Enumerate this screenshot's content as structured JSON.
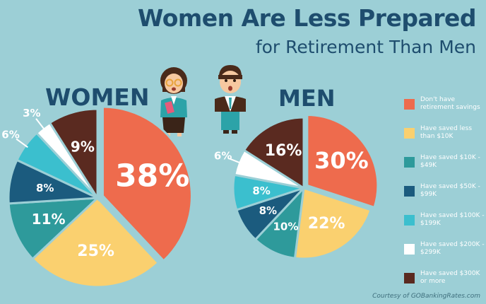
{
  "title": "Women Are Less Prepared",
  "subtitle": "for Retirement Than Men",
  "credit": "Courtesy of GOBankingRates.com",
  "legend": [
    {
      "label": "Don't have retirement savings",
      "color": "#ee6b4d"
    },
    {
      "label": "Have saved less than $10K",
      "color": "#fad06f"
    },
    {
      "label": "Have saved $10K - $49K",
      "color": "#2e9a9b"
    },
    {
      "label": "Have saved $50K - $99K",
      "color": "#1b5b7e"
    },
    {
      "label": "Have saved $100K - $199K",
      "color": "#3bbfce"
    },
    {
      "label": "Have saved $200K - $299K",
      "color": "#ffffff"
    },
    {
      "label": "Have saved $300K or more",
      "color": "#5a2a20"
    }
  ],
  "chart_data": [
    {
      "type": "pie",
      "title": "WOMEN",
      "categories": [
        "Don't have retirement savings",
        "Have saved less than $10K",
        "Have saved $10K - $49K",
        "Have saved $50K - $99K",
        "Have saved $100K - $199K",
        "Have saved $200K - $299K",
        "Have saved $300K or more"
      ],
      "values": [
        38,
        25,
        11,
        8,
        6,
        3,
        9
      ],
      "labels": [
        "38%",
        "25%",
        "11%",
        "8%",
        "6%",
        "3%",
        "9%"
      ],
      "colors": [
        "#ee6b4d",
        "#fad06f",
        "#2e9a9b",
        "#1b5b7e",
        "#3bbfce",
        "#ffffff",
        "#5a2a20"
      ]
    },
    {
      "type": "pie",
      "title": "MEN",
      "categories": [
        "Don't have retirement savings",
        "Have saved less than $10K",
        "Have saved $10K - $49K",
        "Have saved $50K - $99K",
        "Have saved $100K - $199K",
        "Have saved $200K - $299K",
        "Have saved $300K or more"
      ],
      "values": [
        30,
        22,
        10,
        8,
        8,
        6,
        16
      ],
      "labels": [
        "30%",
        "22%",
        "10%",
        "8%",
        "8%",
        "6%",
        "16%"
      ],
      "colors": [
        "#ee6b4d",
        "#fad06f",
        "#2e9a9b",
        "#1b5b7e",
        "#3bbfce",
        "#ffffff",
        "#5a2a20"
      ]
    }
  ]
}
